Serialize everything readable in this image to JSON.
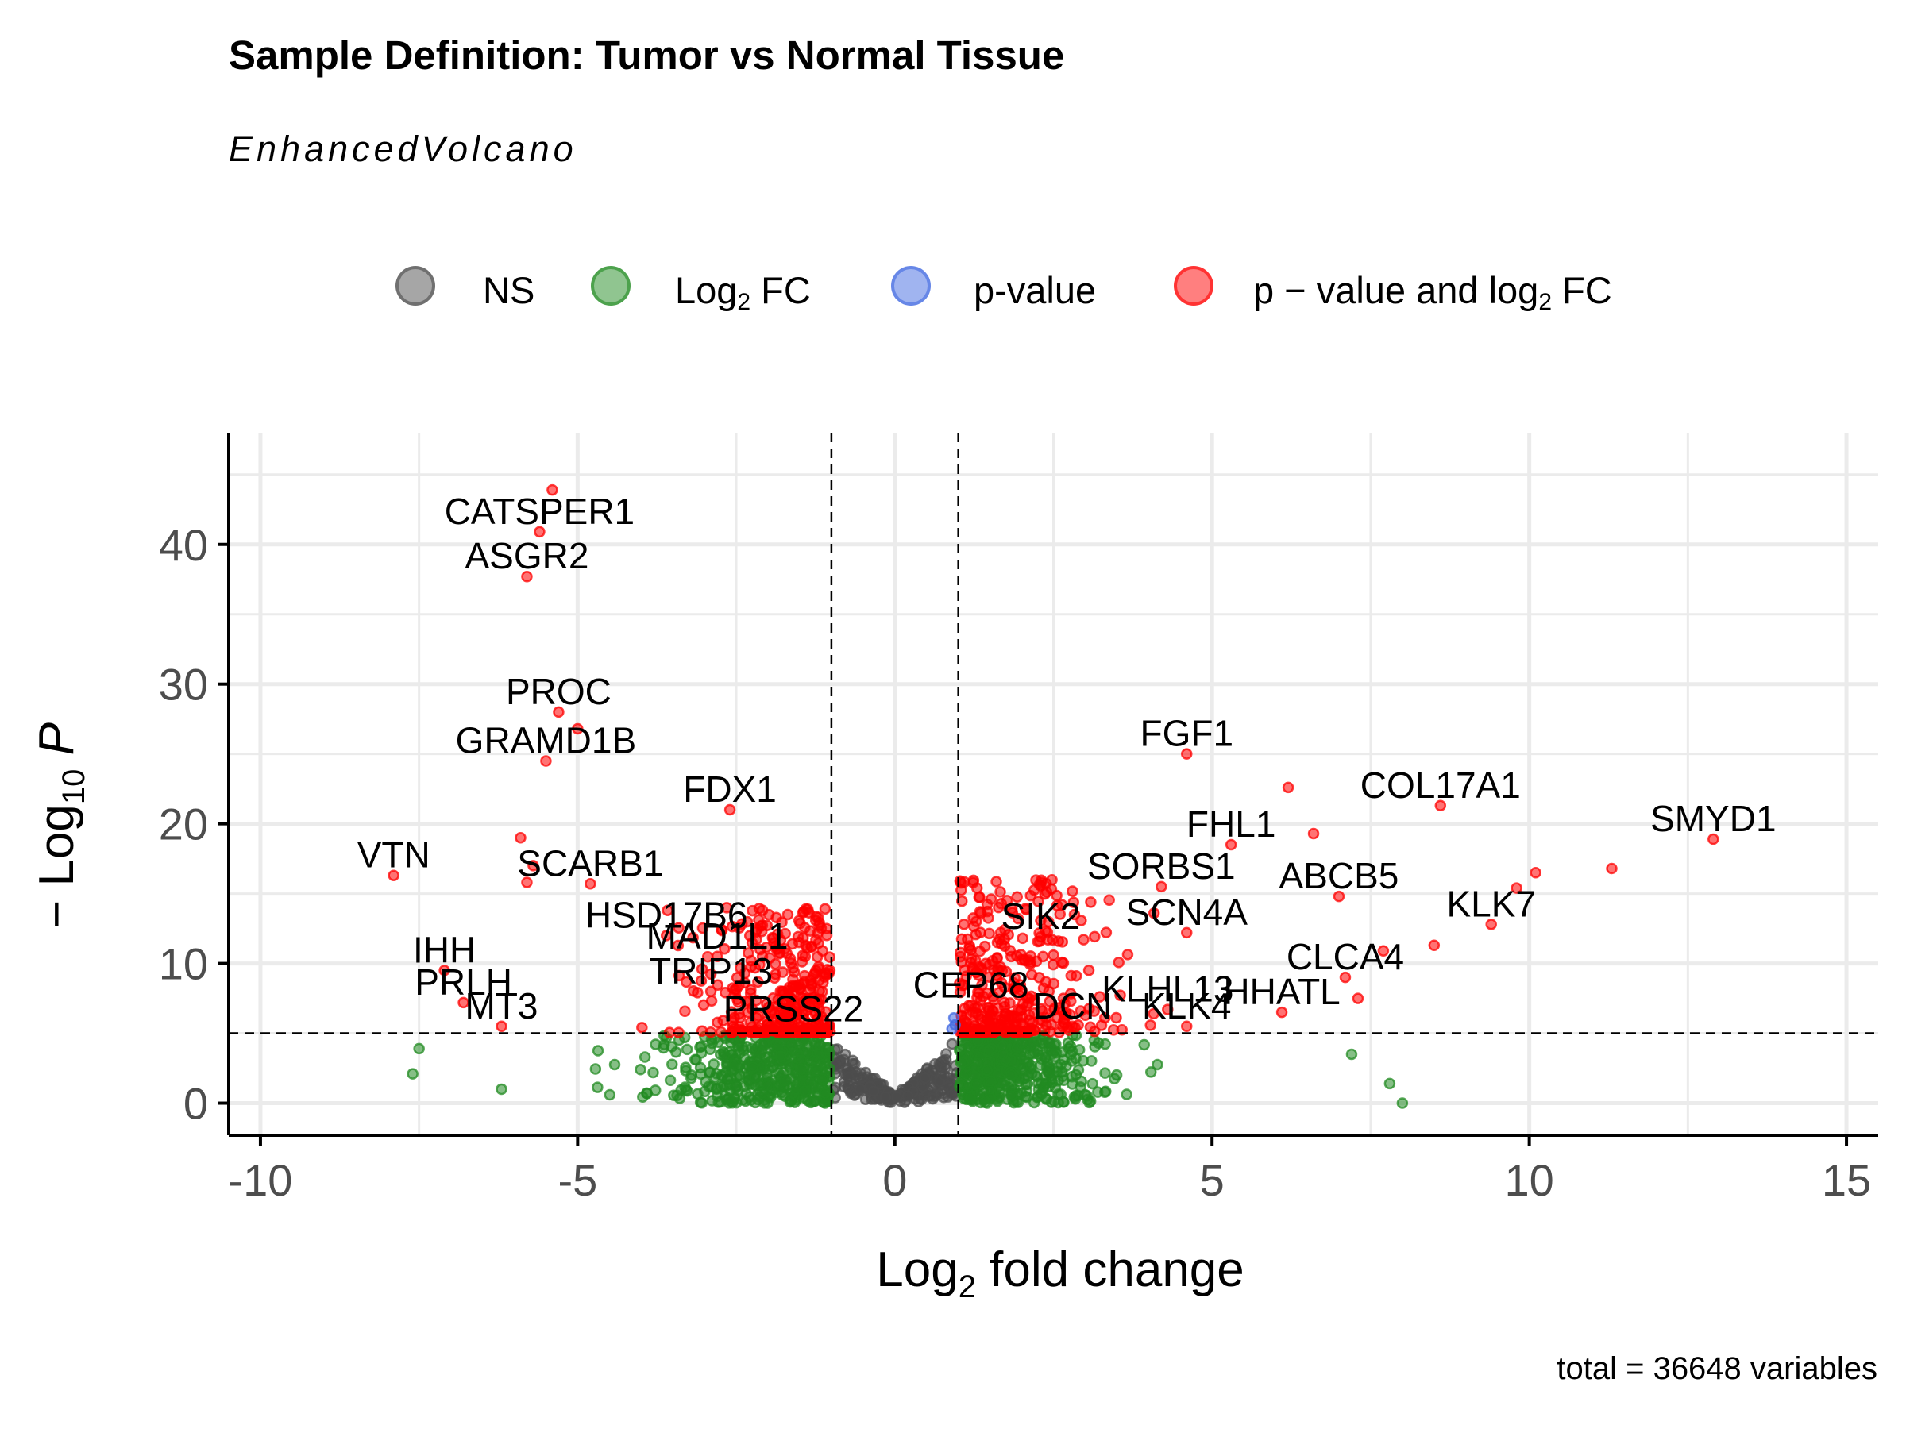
{
  "title": "Sample Definition: Tumor vs Normal Tissue",
  "subtitle": "EnhancedVolcano",
  "caption": "total = 36648 variables",
  "legend": {
    "items": [
      {
        "key": "ns",
        "label": "NS",
        "color": "#4d4d4d"
      },
      {
        "key": "fc",
        "label": "Log2 FC",
        "color": "#228b22"
      },
      {
        "key": "p",
        "label": "p-value",
        "color": "#4169e1"
      },
      {
        "key": "pfc",
        "label": "p − value and log2 FC",
        "color": "#ff0000"
      }
    ]
  },
  "chart_data": {
    "type": "scatter",
    "xlabel": "Log2 fold change",
    "ylabel": "−Log10 P",
    "xlim": [
      -10.5,
      15.5
    ],
    "ylim": [
      -2.3,
      48
    ],
    "xticks": [
      -10,
      -5,
      0,
      5,
      10,
      15
    ],
    "xtick_labels": [
      "-10",
      "-5",
      "0",
      "5",
      "10",
      "15"
    ],
    "yticks": [
      0,
      10,
      20,
      30,
      40
    ],
    "ytick_labels": [
      "0",
      "10",
      "20",
      "30",
      "40"
    ],
    "grid": true,
    "thresholds": {
      "fc": [
        -1,
        1
      ],
      "p": 5
    },
    "colors": {
      "ns": "#4d4d4d",
      "fc": "#228b22",
      "p": "#4169e1",
      "pfc": "#ff0000",
      "axis": "#000000",
      "grid": "#ebebeb",
      "tick_text": "#4d4d4d"
    },
    "labeled_genes": [
      {
        "gene": "CATSPER1",
        "x": -5.6,
        "y": 40.9
      },
      {
        "gene": "ASGR2",
        "x": -5.8,
        "y": 37.7
      },
      {
        "gene": "PROC",
        "x": -5.3,
        "y": 28.0
      },
      {
        "gene": "GRAMD1B",
        "x": -5.5,
        "y": 24.5
      },
      {
        "gene": "FDX1",
        "x": -2.6,
        "y": 21.0
      },
      {
        "gene": "VTN",
        "x": -7.9,
        "y": 16.3
      },
      {
        "gene": "SCARB1",
        "x": -4.8,
        "y": 15.7
      },
      {
        "gene": "HSD17B6",
        "x": -3.6,
        "y": 12.0
      },
      {
        "gene": "IHH",
        "x": -7.1,
        "y": 9.5
      },
      {
        "gene": "MAD1L1",
        "x": -2.8,
        "y": 10.5
      },
      {
        "gene": "PRLH",
        "x": -6.8,
        "y": 7.2
      },
      {
        "gene": "TRIP13",
        "x": -2.9,
        "y": 8.0
      },
      {
        "gene": "MT3",
        "x": -6.2,
        "y": 5.5
      },
      {
        "gene": "PRSS22",
        "x": -1.6,
        "y": 5.3
      },
      {
        "gene": "FGF1",
        "x": 4.6,
        "y": 25.0
      },
      {
        "gene": "COL17A1",
        "x": 8.6,
        "y": 21.3
      },
      {
        "gene": "SMYD1",
        "x": 12.9,
        "y": 18.9
      },
      {
        "gene": "FHL1",
        "x": 5.3,
        "y": 18.5
      },
      {
        "gene": "SORBS1",
        "x": 4.2,
        "y": 15.5
      },
      {
        "gene": "ABCB5",
        "x": 7.0,
        "y": 14.8
      },
      {
        "gene": "KLK7",
        "x": 9.4,
        "y": 12.8
      },
      {
        "gene": "SIK2",
        "x": 2.3,
        "y": 11.9
      },
      {
        "gene": "SCN4A",
        "x": 4.6,
        "y": 12.2
      },
      {
        "gene": "CLCA4",
        "x": 7.1,
        "y": 9.0
      },
      {
        "gene": "CEP68",
        "x": 1.2,
        "y": 7.0
      },
      {
        "gene": "KLHL13",
        "x": 4.3,
        "y": 6.7
      },
      {
        "gene": "HHATL",
        "x": 6.1,
        "y": 6.5
      },
      {
        "gene": "DCN",
        "x": 2.8,
        "y": 5.5
      },
      {
        "gene": "KLK4",
        "x": 4.6,
        "y": 5.5
      }
    ]
  }
}
